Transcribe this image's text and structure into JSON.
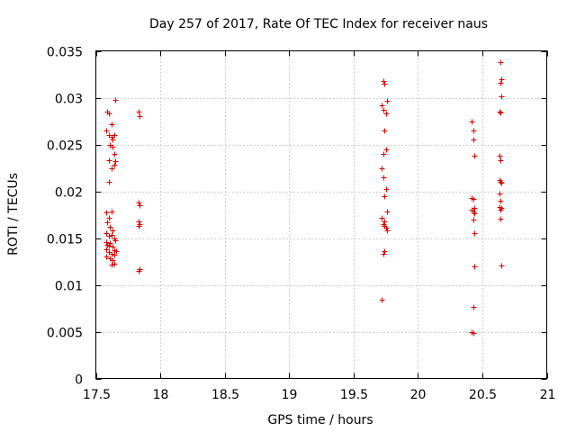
{
  "chart_data": {
    "type": "scatter",
    "title": "Day 257 of 2017, Rate Of TEC Index for receiver naus",
    "xlabel": "GPS time / hours",
    "ylabel": "ROTI / TECUs",
    "xlim": [
      17.5,
      21
    ],
    "ylim": [
      0,
      0.035
    ],
    "x_ticks": [
      17.5,
      18,
      18.5,
      19,
      19.5,
      20,
      20.5,
      21
    ],
    "x_tick_labels": [
      "17.5",
      "18",
      "18.5",
      "19",
      "19.5",
      "20",
      "20.5",
      "21"
    ],
    "y_ticks": [
      0,
      0.005,
      0.01,
      0.015,
      0.02,
      0.025,
      0.03,
      0.035
    ],
    "y_tick_labels": [
      "0",
      "0.005",
      "0.01",
      "0.015",
      "0.02",
      "0.025",
      "0.03",
      "0.035"
    ],
    "grid": true,
    "marker": "+",
    "color": "#e00000",
    "series": [
      {
        "name": "ROTI",
        "points": [
          [
            17.58,
            0.0265
          ],
          [
            17.59,
            0.0285
          ],
          [
            17.6,
            0.0283
          ],
          [
            17.62,
            0.0272
          ],
          [
            17.65,
            0.0298
          ],
          [
            17.6,
            0.026
          ],
          [
            17.62,
            0.0258
          ],
          [
            17.63,
            0.0255
          ],
          [
            17.64,
            0.026
          ],
          [
            17.61,
            0.025
          ],
          [
            17.63,
            0.0248
          ],
          [
            17.64,
            0.024
          ],
          [
            17.6,
            0.0233
          ],
          [
            17.62,
            0.0225
          ],
          [
            17.64,
            0.0228
          ],
          [
            17.65,
            0.0232
          ],
          [
            17.6,
            0.021
          ],
          [
            17.58,
            0.0177
          ],
          [
            17.6,
            0.0172
          ],
          [
            17.62,
            0.0178
          ],
          [
            17.59,
            0.0167
          ],
          [
            17.61,
            0.0162
          ],
          [
            17.63,
            0.0158
          ],
          [
            17.58,
            0.0155
          ],
          [
            17.6,
            0.0152
          ],
          [
            17.62,
            0.0153
          ],
          [
            17.64,
            0.015
          ],
          [
            17.65,
            0.0148
          ],
          [
            17.58,
            0.0146
          ],
          [
            17.59,
            0.0143
          ],
          [
            17.6,
            0.0142
          ],
          [
            17.61,
            0.0145
          ],
          [
            17.63,
            0.0141
          ],
          [
            17.64,
            0.0137
          ],
          [
            17.58,
            0.0138
          ],
          [
            17.6,
            0.0135
          ],
          [
            17.62,
            0.0133
          ],
          [
            17.64,
            0.0132
          ],
          [
            17.66,
            0.0136
          ],
          [
            17.58,
            0.013
          ],
          [
            17.61,
            0.0128
          ],
          [
            17.63,
            0.0126
          ],
          [
            17.62,
            0.0122
          ],
          [
            17.64,
            0.0123
          ],
          [
            17.83,
            0.0285
          ],
          [
            17.84,
            0.028
          ],
          [
            17.83,
            0.0188
          ],
          [
            17.84,
            0.0185
          ],
          [
            17.83,
            0.0168
          ],
          [
            17.84,
            0.0165
          ],
          [
            17.83,
            0.0163
          ],
          [
            17.84,
            0.0117
          ],
          [
            17.83,
            0.0115
          ],
          [
            19.73,
            0.0318
          ],
          [
            19.74,
            0.0315
          ],
          [
            19.76,
            0.0297
          ],
          [
            19.72,
            0.0292
          ],
          [
            19.73,
            0.0287
          ],
          [
            19.75,
            0.0283
          ],
          [
            19.74,
            0.0265
          ],
          [
            19.75,
            0.0245
          ],
          [
            19.73,
            0.024
          ],
          [
            19.72,
            0.0225
          ],
          [
            19.73,
            0.0215
          ],
          [
            19.75,
            0.0202
          ],
          [
            19.74,
            0.0195
          ],
          [
            19.76,
            0.0178
          ],
          [
            19.72,
            0.0172
          ],
          [
            19.74,
            0.0168
          ],
          [
            19.73,
            0.0165
          ],
          [
            19.74,
            0.0163
          ],
          [
            19.75,
            0.0161
          ],
          [
            19.76,
            0.0158
          ],
          [
            19.74,
            0.0136
          ],
          [
            19.73,
            0.0133
          ],
          [
            19.72,
            0.0084
          ],
          [
            20.42,
            0.0275
          ],
          [
            20.43,
            0.0265
          ],
          [
            20.43,
            0.0255
          ],
          [
            20.44,
            0.0238
          ],
          [
            20.42,
            0.0193
          ],
          [
            20.43,
            0.0192
          ],
          [
            20.44,
            0.0182
          ],
          [
            20.42,
            0.018
          ],
          [
            20.43,
            0.0178
          ],
          [
            20.44,
            0.0176
          ],
          [
            20.43,
            0.017
          ],
          [
            20.44,
            0.0155
          ],
          [
            20.44,
            0.012
          ],
          [
            20.43,
            0.0076
          ],
          [
            20.42,
            0.005
          ],
          [
            20.43,
            0.0049
          ],
          [
            20.64,
            0.0338
          ],
          [
            20.65,
            0.032
          ],
          [
            20.64,
            0.0316
          ],
          [
            20.65,
            0.0301
          ],
          [
            20.63,
            0.0285
          ],
          [
            20.64,
            0.0284
          ],
          [
            20.63,
            0.0238
          ],
          [
            20.64,
            0.0233
          ],
          [
            20.63,
            0.0212
          ],
          [
            20.64,
            0.021
          ],
          [
            20.65,
            0.0209
          ],
          [
            20.63,
            0.0198
          ],
          [
            20.64,
            0.019
          ],
          [
            20.63,
            0.0183
          ],
          [
            20.64,
            0.018
          ],
          [
            20.65,
            0.0182
          ],
          [
            20.64,
            0.0171
          ],
          [
            20.65,
            0.0121
          ]
        ]
      }
    ]
  }
}
